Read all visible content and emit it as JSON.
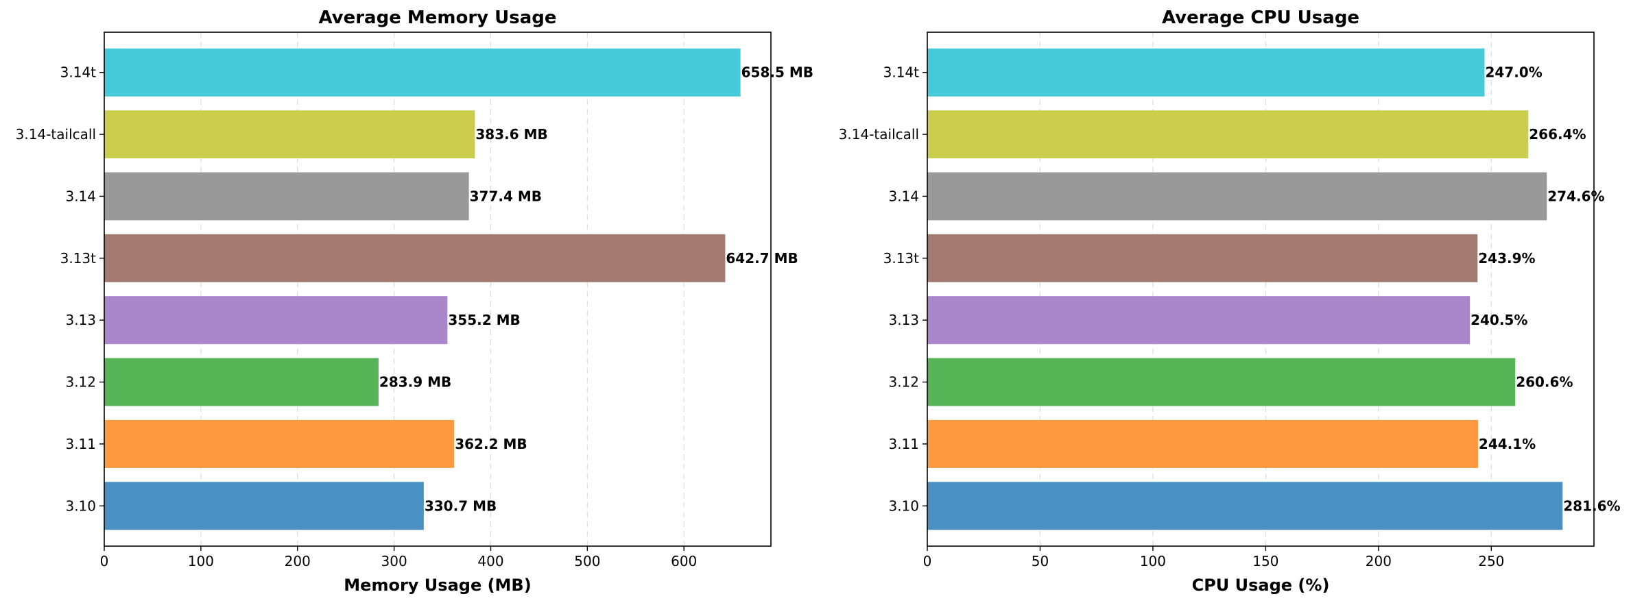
{
  "chart_data": [
    {
      "type": "bar",
      "orientation": "horizontal",
      "title": "Average Memory Usage",
      "xlabel": "Memory Usage (MB)",
      "ylabel": "",
      "categories": [
        "3.10",
        "3.11",
        "3.12",
        "3.13",
        "3.13t",
        "3.14",
        "3.14-tailcall",
        "3.14t"
      ],
      "values": [
        330.7,
        362.2,
        283.9,
        355.2,
        642.7,
        377.4,
        383.6,
        658.5
      ],
      "value_labels": [
        "330.7 MB",
        "362.2 MB",
        "283.9 MB",
        "355.2 MB",
        "642.7 MB",
        "377.4 MB",
        "383.6 MB",
        "658.5 MB"
      ],
      "colors": [
        "#4a90c2",
        "#ff9940",
        "#57b557",
        "#a987ca",
        "#a37a6f",
        "#999999",
        "#cbcd4f",
        "#46c9d8"
      ],
      "xlim": [
        0,
        690
      ],
      "xticks": [
        0,
        100,
        200,
        300,
        400,
        500,
        600
      ],
      "grid": "x-dashed",
      "legend": "none"
    },
    {
      "type": "bar",
      "orientation": "horizontal",
      "title": "Average CPU Usage",
      "xlabel": "CPU Usage (%)",
      "ylabel": "",
      "categories": [
        "3.10",
        "3.11",
        "3.12",
        "3.13",
        "3.13t",
        "3.14",
        "3.14-tailcall",
        "3.14t"
      ],
      "values": [
        281.6,
        244.1,
        260.6,
        240.5,
        243.9,
        274.6,
        266.4,
        247.0
      ],
      "value_labels": [
        "281.6%",
        "244.1%",
        "260.6%",
        "240.5%",
        "243.9%",
        "274.6%",
        "266.4%",
        "247.0%"
      ],
      "colors": [
        "#4a90c2",
        "#ff9940",
        "#57b557",
        "#a987ca",
        "#a37a6f",
        "#999999",
        "#cbcd4f",
        "#46c9d8"
      ],
      "xlim": [
        0,
        295.5
      ],
      "xticks": [
        0,
        50,
        100,
        150,
        200,
        250
      ],
      "grid": "x-dashed",
      "legend": "none"
    }
  ]
}
